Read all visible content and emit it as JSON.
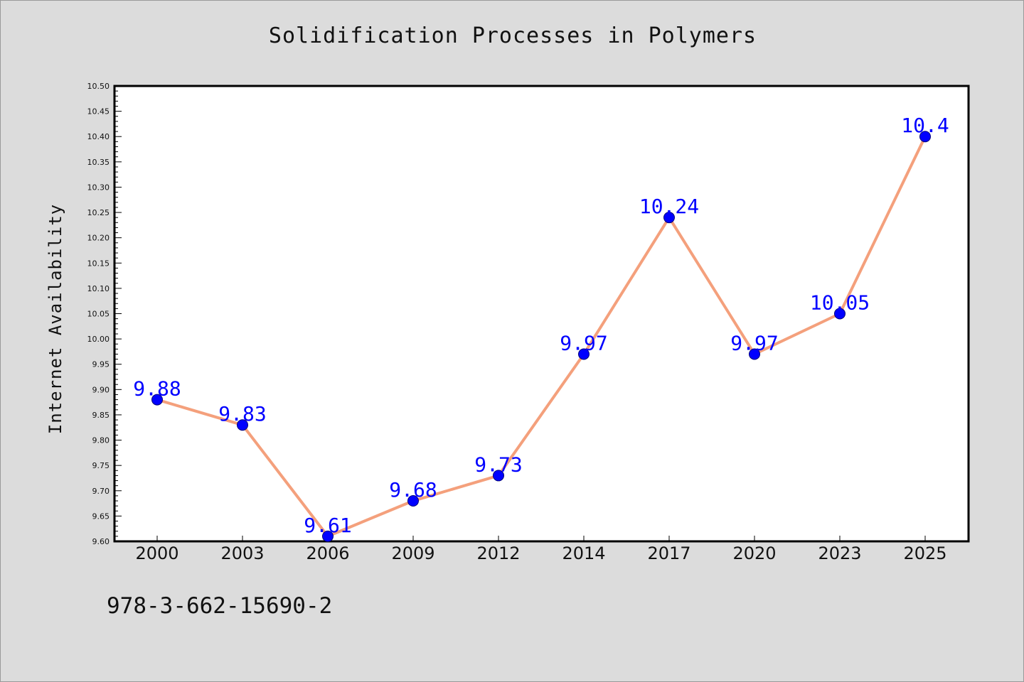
{
  "chart_data": {
    "type": "line",
    "title": "Solidification Processes in Polymers",
    "xlabel": "",
    "ylabel": "Internet Availability",
    "categories": [
      "2000",
      "2003",
      "2006",
      "2009",
      "2012",
      "2014",
      "2017",
      "2020",
      "2023",
      "2025"
    ],
    "series": [
      {
        "values": [
          9.88,
          9.83,
          9.61,
          9.68,
          9.73,
          9.97,
          10.24,
          9.97,
          10.05,
          10.4
        ],
        "data_labels": [
          "9.88",
          "9.83",
          "9.61",
          "9.68",
          "9.73",
          "9.97",
          "10.24",
          "9.97",
          "10.05",
          "10.4"
        ]
      }
    ],
    "ylim": [
      9.6,
      10.5
    ],
    "yticks": [
      "9.60",
      "9.65",
      "9.70",
      "9.75",
      "9.80",
      "9.85",
      "9.90",
      "9.95",
      "10.00",
      "10.05",
      "10.10",
      "10.15",
      "10.20",
      "10.25",
      "10.30",
      "10.35",
      "10.40",
      "10.45",
      "10.50"
    ],
    "grid": false,
    "legend": "none",
    "colors": {
      "line": "#f4a07c",
      "marker": "#0000ff",
      "marker_edge": "#00007a",
      "data_label": "#0000ff",
      "plot_background": "#ffffff",
      "figure_background": "#dcdcdc"
    }
  },
  "annotation": {
    "text": "978-3-662-15690-2"
  }
}
